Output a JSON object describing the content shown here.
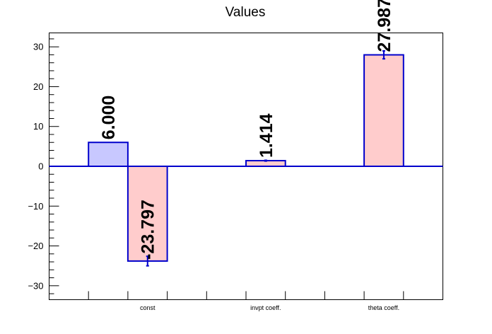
{
  "chart_data": {
    "type": "bar",
    "title": "Values",
    "xlabel": "",
    "ylabel": "",
    "ylim": [
      -33.5,
      33.5
    ],
    "y_ticks": [
      -30,
      -20,
      -10,
      0,
      10,
      20,
      30
    ],
    "y_tick_labels": [
      "−30",
      "−20",
      "−10",
      "0",
      "10",
      "20",
      "30"
    ],
    "categories": [
      "const",
      "invpt coeff.",
      "theta coeff."
    ],
    "bars": [
      {
        "slot": 1,
        "value": 6.0,
        "error": 0,
        "label": "6.000",
        "fill": "#c8c8ff"
      },
      {
        "slot": 2,
        "value": -23.797,
        "error": 1.2,
        "label": "-23.797",
        "fill": "#ffcccc"
      },
      {
        "slot": 5,
        "value": 1.414,
        "error": 0.1,
        "label": "1.414",
        "fill": "#ffcccc"
      },
      {
        "slot": 8,
        "value": 27.987,
        "error": 1.0,
        "label": "27.987",
        "fill": "#ffcccc"
      }
    ],
    "category_slots": [
      2.5,
      5.5,
      8.5
    ],
    "n_slots": 10,
    "grid": false,
    "legend": "none",
    "bar_edge_color": "#0000cc",
    "zero_line_color": "#0000cc"
  }
}
